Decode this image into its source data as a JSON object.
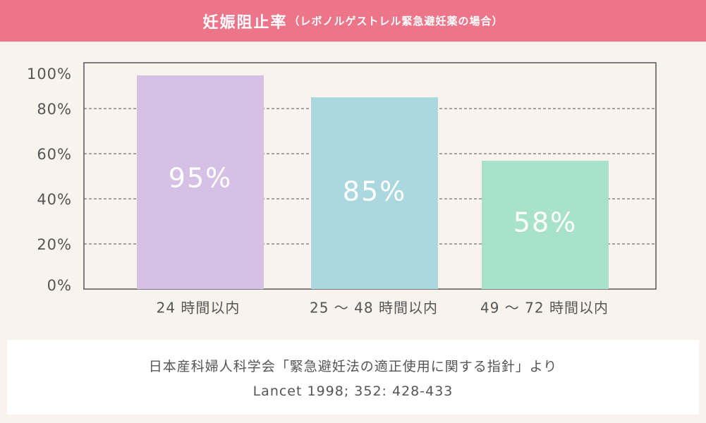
{
  "header": {
    "title": "妊娠阻止率",
    "subtitle": "（レボノルゲストレル緊急避妊薬の場合）"
  },
  "chart_data": {
    "type": "bar",
    "categories": [
      "24 時間以内",
      "25 〜 48 時間以内",
      "49 〜 72 時間以内"
    ],
    "values": [
      95,
      85,
      58
    ],
    "value_labels": [
      "95%",
      "85%",
      "58%"
    ],
    "bar_colors": [
      "#d5c0e6",
      "#abd7df",
      "#a9e2cb"
    ],
    "yticks": [
      "0%",
      "20%",
      "40%",
      "60%",
      "80%",
      "100%"
    ],
    "ylim": [
      0,
      100
    ],
    "grid": "horizontal dashed"
  },
  "source": {
    "line1": "日本産科婦人科学会「緊急避妊法の適正使用に関する指針」より",
    "line2": "Lancet 1998; 352: 428-433"
  }
}
